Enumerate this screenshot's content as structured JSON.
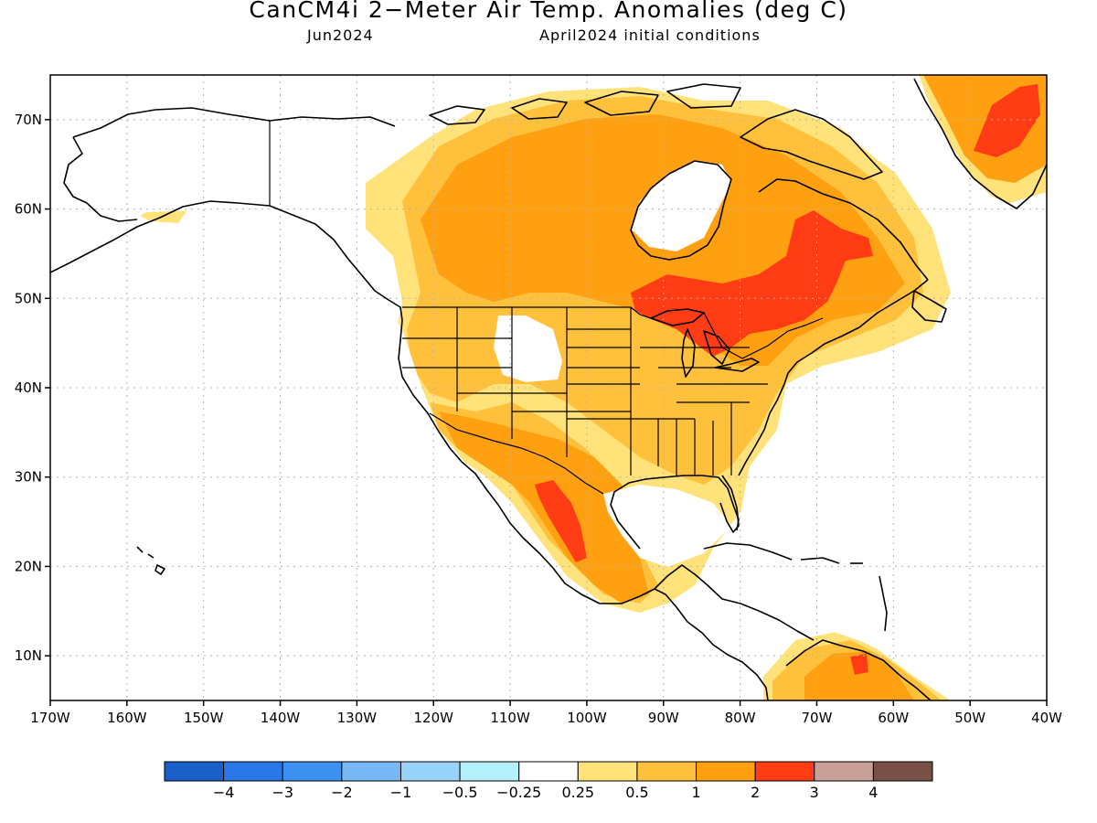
{
  "title": "CanCM4i 2−Meter Air Temp. Anomalies (deg C)",
  "subtitle_left": "Jun2024",
  "subtitle_right": "April2024 initial conditions",
  "map": {
    "lon_range": [
      -170,
      -40
    ],
    "lat_range": [
      5,
      75
    ],
    "lon_ticks": [
      "170W",
      "160W",
      "150W",
      "140W",
      "130W",
      "120W",
      "110W",
      "100W",
      "90W",
      "80W",
      "70W",
      "60W",
      "50W",
      "40W"
    ],
    "lat_ticks": [
      "10N",
      "20N",
      "30N",
      "40N",
      "50N",
      "60N",
      "70N"
    ],
    "grid": true
  },
  "colorbar": {
    "colors": [
      "#1a5fc8",
      "#2a78e8",
      "#3c91f0",
      "#78b9f5",
      "#97d2fa",
      "#b4f0fa",
      "#ffffff",
      "#ffe27a",
      "#ffc03c",
      "#ffa010",
      "#ff3c14",
      "#c8a096",
      "#785046"
    ],
    "labels": [
      "−4",
      "−3",
      "−2",
      "−1",
      "−0.5",
      "−0.25",
      "0.25",
      "0.5",
      "1",
      "2",
      "3",
      "4"
    ]
  },
  "legend_anomaly_colors": {
    "above_0.25": "#ffe27a",
    "above_0.5": "#ffc03c",
    "above_1": "#ffa010",
    "above_2": "#ff3c14"
  }
}
